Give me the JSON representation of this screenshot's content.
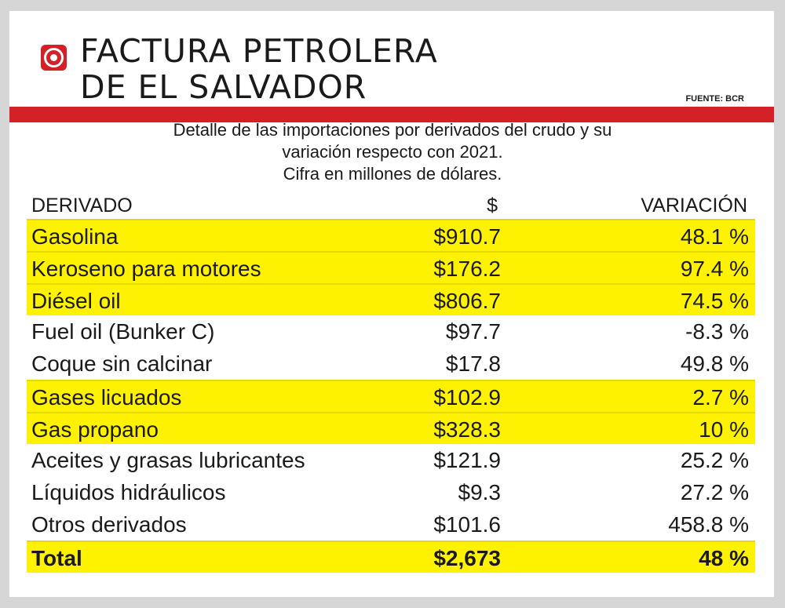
{
  "header": {
    "title_line1": "FACTURA PETROLERA",
    "title_line2": "DE EL SALVADOR",
    "source": "FUENTE: BCR",
    "logo_icon": "target-icon",
    "accent_color": "#d42027",
    "highlight_color": "#fff200"
  },
  "subtitle": {
    "line1": "Detalle de las importaciones por derivados del crudo y su",
    "line2": "variación respecto con 2021.",
    "line3": "Cifra en millones de dólares."
  },
  "chart_data": {
    "type": "table",
    "columns": [
      "DERIVADO",
      "$",
      "VARIACIÓN"
    ],
    "rows": [
      {
        "derivado": "Gasolina",
        "valor": "$910.7",
        "variacion": "48.1 %",
        "highlight": true
      },
      {
        "derivado": "Keroseno para motores",
        "valor": "$176.2",
        "variacion": "97.4 %",
        "highlight": true
      },
      {
        "derivado": "Diésel oil",
        "valor": "$806.7",
        "variacion": "74.5 %",
        "highlight": true
      },
      {
        "derivado": "Fuel oil (Bunker C)",
        "valor": "$97.7",
        "variacion": "-8.3 %",
        "highlight": false
      },
      {
        "derivado": "Coque sin calcinar",
        "valor": "$17.8",
        "variacion": "49.8 %",
        "highlight": false
      },
      {
        "derivado": "Gases licuados",
        "valor": "$102.9",
        "variacion": "2.7 %",
        "highlight": true
      },
      {
        "derivado": "Gas propano",
        "valor": "$328.3",
        "variacion": "10 %",
        "highlight": true
      },
      {
        "derivado": "Aceites y grasas lubricantes",
        "valor": "$121.9",
        "variacion": "25.2 %",
        "highlight": false
      },
      {
        "derivado": "Líquidos hidráulicos",
        "valor": "$9.3",
        "variacion": "27.2 %",
        "highlight": false
      },
      {
        "derivado": "Otros derivados",
        "valor": "$101.6",
        "variacion": "458.8 %",
        "highlight": false
      }
    ],
    "total": {
      "derivado": "Total",
      "valor": "$2,673",
      "variacion": "48 %",
      "highlight": true
    }
  }
}
